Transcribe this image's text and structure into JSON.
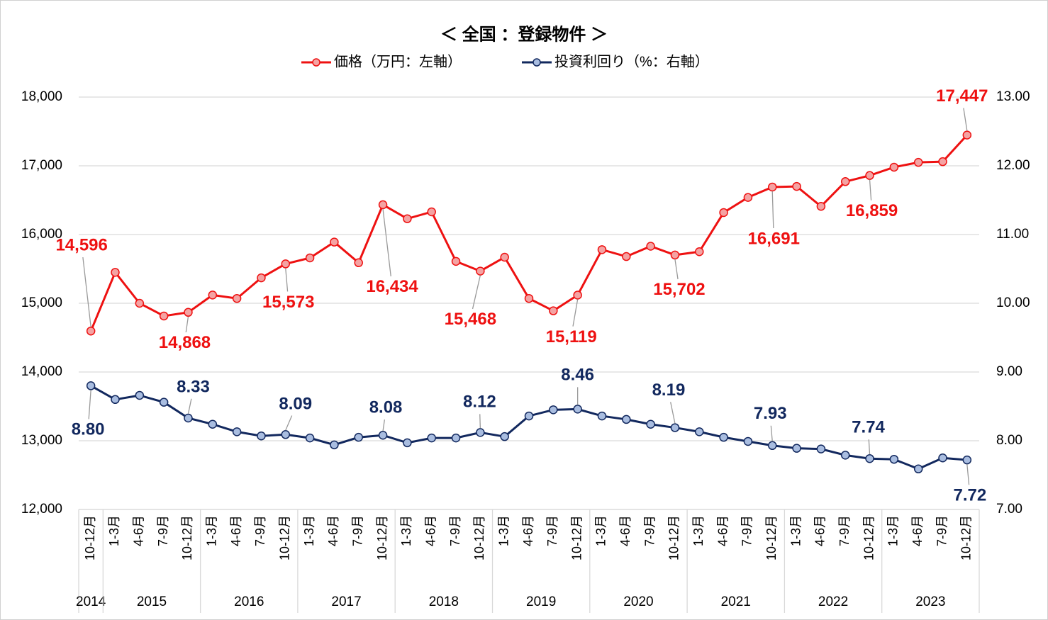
{
  "chart_data": {
    "type": "line",
    "title": "＜ 全国 ：登録物件 ＞",
    "categories": [
      "10-12月",
      "1-3月",
      "4-6月",
      "7-9月",
      "10-12月",
      "1-3月",
      "4-6月",
      "7-9月",
      "10-12月",
      "1-3月",
      "4-6月",
      "7-9月",
      "10-12月",
      "1-3月",
      "4-6月",
      "7-9月",
      "10-12月",
      "1-3月",
      "4-6月",
      "7-9月",
      "10-12月",
      "1-3月",
      "4-6月",
      "7-9月",
      "10-12月",
      "1-3月",
      "4-6月",
      "7-9月",
      "10-12月",
      "1-3月",
      "4-6月",
      "7-9月",
      "10-12月",
      "1-3月",
      "4-6月",
      "7-9月",
      "10-12月"
    ],
    "groups": [
      {
        "label": "2014",
        "count": 1
      },
      {
        "label": "2015",
        "count": 4
      },
      {
        "label": "2016",
        "count": 4
      },
      {
        "label": "2017",
        "count": 4
      },
      {
        "label": "2018",
        "count": 4
      },
      {
        "label": "2019",
        "count": 4
      },
      {
        "label": "2020",
        "count": 4
      },
      {
        "label": "2021",
        "count": 4
      },
      {
        "label": "2022",
        "count": 4
      },
      {
        "label": "2023",
        "count": 4
      }
    ],
    "series": [
      {
        "name": "価格（万円：左軸）",
        "color": "#ee1111",
        "marker_color": "#f4a3a3",
        "values": [
          14596,
          15450,
          15000,
          14815,
          14868,
          15120,
          15070,
          15370,
          15573,
          15660,
          15890,
          15590,
          16434,
          16230,
          16330,
          15610,
          15468,
          15670,
          15070,
          14890,
          15119,
          15780,
          15680,
          15830,
          15702,
          15750,
          16320,
          16540,
          16691,
          16700,
          16410,
          16770,
          16859,
          16980,
          17050,
          17060,
          17447
        ],
        "value_labels": [
          "14,596",
          null,
          null,
          null,
          "14,868",
          null,
          null,
          null,
          "15,573",
          null,
          null,
          null,
          "16,434",
          null,
          null,
          null,
          "15,468",
          null,
          null,
          null,
          "15,119",
          null,
          null,
          null,
          "15,702",
          null,
          null,
          null,
          "16,691",
          null,
          null,
          null,
          "16,859",
          null,
          null,
          null,
          "17,447"
        ]
      },
      {
        "name": "投資利回り（%：右軸）",
        "color": "#12285e",
        "marker_color": "#a9bde0",
        "axis": "y2",
        "values": [
          8.8,
          8.6,
          8.66,
          8.56,
          8.33,
          8.24,
          8.13,
          8.07,
          8.09,
          8.04,
          7.94,
          8.05,
          8.08,
          7.97,
          8.04,
          8.04,
          8.12,
          8.06,
          8.36,
          8.45,
          8.46,
          8.36,
          8.31,
          8.24,
          8.19,
          8.13,
          8.05,
          7.99,
          7.93,
          7.89,
          7.88,
          7.79,
          7.74,
          7.73,
          7.59,
          7.75,
          7.72
        ],
        "value_labels": [
          "8.80",
          null,
          null,
          null,
          "8.33",
          null,
          null,
          null,
          "8.09",
          null,
          null,
          null,
          "8.08",
          null,
          null,
          null,
          "8.12",
          null,
          null,
          null,
          "8.46",
          null,
          null,
          null,
          "8.19",
          null,
          null,
          null,
          "7.93",
          null,
          null,
          null,
          "7.74",
          null,
          null,
          null,
          "7.72"
        ]
      }
    ],
    "ylim": [
      12000,
      18000
    ],
    "yticks": [
      {
        "value": 12000,
        "label": "12,000"
      },
      {
        "value": 13000,
        "label": "13,000"
      },
      {
        "value": 14000,
        "label": "14,000"
      },
      {
        "value": 15000,
        "label": "15,000"
      },
      {
        "value": 16000,
        "label": "16,000"
      },
      {
        "value": 17000,
        "label": "17,000"
      },
      {
        "value": 18000,
        "label": "18,000"
      }
    ],
    "y2lim": [
      7,
      13
    ],
    "y2ticks": [
      {
        "value": 7,
        "label": "7.00"
      },
      {
        "value": 8,
        "label": "8.00"
      },
      {
        "value": 9,
        "label": "9.00"
      },
      {
        "value": 10,
        "label": "10.00"
      },
      {
        "value": 11,
        "label": "11.00"
      },
      {
        "value": 12,
        "label": "12.00"
      },
      {
        "value": 13,
        "label": "13.00"
      }
    ],
    "grid": true,
    "legend": "top"
  }
}
